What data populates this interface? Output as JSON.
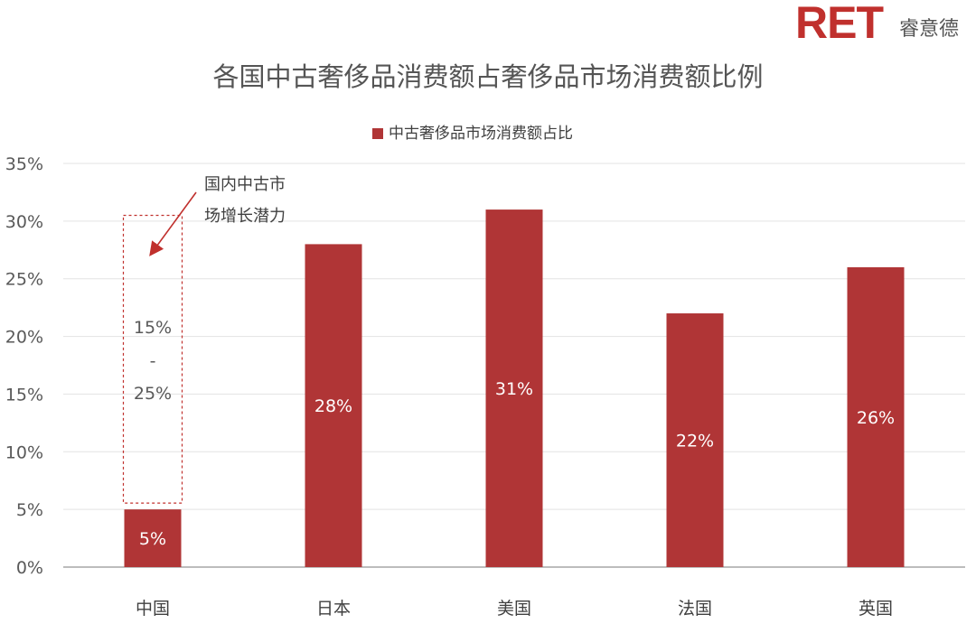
{
  "logo": {
    "mark": "RET",
    "text": "睿意德"
  },
  "chart_data": {
    "type": "bar",
    "title": "各国中古奢侈品消费额占奢侈品市场消费额比例",
    "xlabel": "",
    "ylabel": "",
    "categories": [
      "中国",
      "日本",
      "美国",
      "法国",
      "英国"
    ],
    "series": [
      {
        "name": "中古奢侈品市场消费额占比",
        "values": [
          5,
          28,
          31,
          22,
          26
        ],
        "data_labels": [
          "5%",
          "28%",
          "31%",
          "22%",
          "26%"
        ]
      }
    ],
    "ylim": [
      0,
      35
    ],
    "y_ticks": [
      0,
      5,
      10,
      15,
      20,
      25,
      30,
      35
    ],
    "y_tick_labels": [
      "0%",
      "5%",
      "10%",
      "15%",
      "20%",
      "25%",
      "30%",
      "35%"
    ],
    "grid": true,
    "legend_position": "top-center",
    "bar_color": "#b03536",
    "potential_range": {
      "category": "中国",
      "lower": 5,
      "upper": 30.5,
      "label_lines": [
        "15%",
        "-",
        "25%"
      ],
      "annotation_lines": [
        "国内中古市",
        "场增长潜力"
      ]
    }
  }
}
